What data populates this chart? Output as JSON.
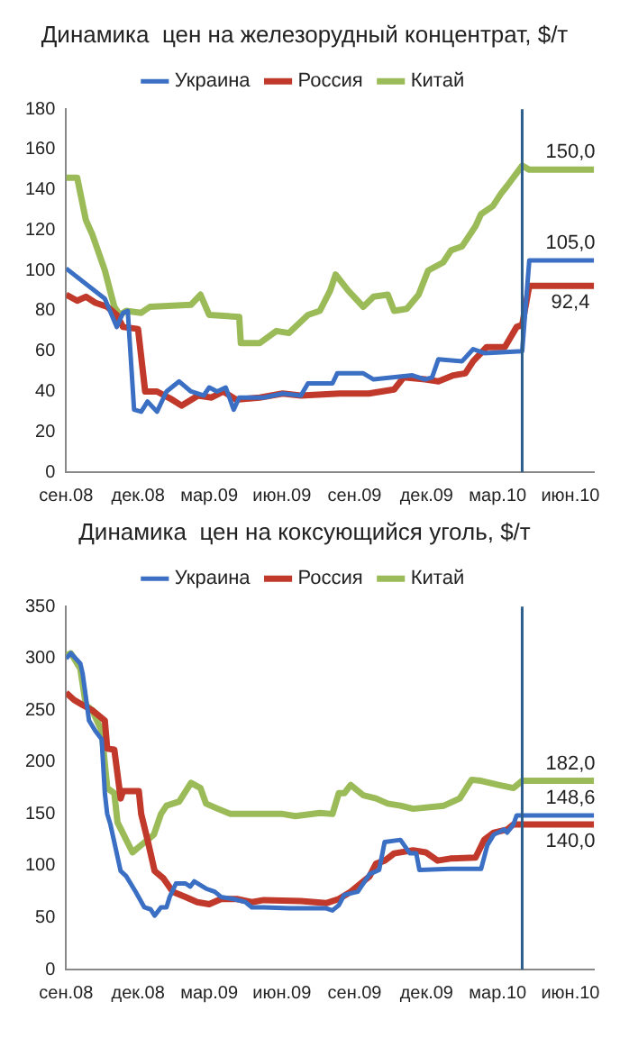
{
  "chart_data": [
    {
      "type": "line",
      "title": "Динамика  цен на железорудный концентрат, $/т",
      "legend": "top",
      "xlim": [
        "2008-09-01",
        "2010-07-01"
      ],
      "xticks": [
        {
          "value": "2008-09-01",
          "label": "сен.08"
        },
        {
          "value": "2008-12-01",
          "label": "дек.08"
        },
        {
          "value": "2009-03-01",
          "label": "мар.09"
        },
        {
          "value": "2009-06-01",
          "label": "июн.09"
        },
        {
          "value": "2009-09-01",
          "label": "сен.09"
        },
        {
          "value": "2009-12-01",
          "label": "дек.09"
        },
        {
          "value": "2010-03-01",
          "label": "мар.10"
        },
        {
          "value": "2010-06-01",
          "label": "июн.10"
        }
      ],
      "ylim": [
        0,
        180
      ],
      "yticks": [
        0,
        20,
        40,
        60,
        80,
        100,
        120,
        140,
        160,
        180
      ],
      "series": [
        {
          "name": "Украина",
          "color": "#3a6fc4",
          "x": [
            "2008-09-01",
            "2008-10-20",
            "2008-11-04",
            "2008-11-12",
            "2008-11-18",
            "2008-11-26",
            "2008-12-05",
            "2008-12-13",
            "2008-12-25",
            "2009-01-06",
            "2009-01-22",
            "2009-02-06",
            "2009-02-22",
            "2009-03-01",
            "2009-03-11",
            "2009-03-22",
            "2009-04-01",
            "2009-04-08",
            "2009-05-09",
            "2009-06-02",
            "2009-06-25",
            "2009-07-04",
            "2009-08-04",
            "2009-08-10",
            "2009-09-12",
            "2009-09-25",
            "2009-11-13",
            "2009-11-29",
            "2009-12-08",
            "2009-12-16",
            "2010-01-15",
            "2010-01-29",
            "2010-02-12",
            "2010-04-01",
            "2010-04-10",
            "2010-07-01"
          ],
          "values": [
            101,
            86,
            72,
            79,
            80,
            31,
            30,
            35,
            30,
            40,
            45,
            40,
            38,
            42,
            40,
            42,
            31,
            37,
            37,
            39,
            38,
            44,
            44,
            49,
            49,
            46,
            48,
            46,
            47,
            56,
            55,
            61,
            59,
            60,
            105,
            105
          ]
        },
        {
          "name": "Россия",
          "color": "#c0392b",
          "x": [
            "2008-09-01",
            "2008-09-15",
            "2008-09-26",
            "2008-10-08",
            "2008-10-23",
            "2008-11-04",
            "2008-11-12",
            "2008-12-01",
            "2008-12-10",
            "2008-12-25",
            "2009-01-13",
            "2009-01-25",
            "2009-02-15",
            "2009-03-04",
            "2009-03-19",
            "2009-04-04",
            "2009-05-04",
            "2009-06-02",
            "2009-06-25",
            "2009-08-13",
            "2009-09-19",
            "2009-10-21",
            "2009-11-02",
            "2009-11-29",
            "2009-12-16",
            "2010-01-04",
            "2010-01-19",
            "2010-01-29",
            "2010-02-15",
            "2010-03-10",
            "2010-03-25",
            "2010-04-01",
            "2010-04-10",
            "2010-07-01"
          ],
          "values": [
            88,
            85,
            87,
            84,
            82,
            78,
            72,
            71,
            40,
            40,
            36,
            33,
            38,
            37,
            40,
            36,
            37,
            39,
            38,
            39,
            39,
            41,
            47,
            46,
            45,
            48,
            49,
            55,
            62,
            62,
            72,
            73,
            92.4,
            92.4
          ]
        },
        {
          "name": "Китай",
          "color": "#9bbb59",
          "x": [
            "2008-09-01",
            "2008-09-15",
            "2008-09-26",
            "2008-10-04",
            "2008-10-20",
            "2008-11-01",
            "2008-11-08",
            "2008-11-16",
            "2008-12-05",
            "2008-12-16",
            "2009-02-06",
            "2009-02-18",
            "2009-03-01",
            "2009-04-08",
            "2009-04-10",
            "2009-05-04",
            "2009-05-25",
            "2009-06-10",
            "2009-07-04",
            "2009-07-19",
            "2009-08-01",
            "2009-08-08",
            "2009-08-24",
            "2009-09-12",
            "2009-09-25",
            "2009-10-13",
            "2009-10-21",
            "2009-11-06",
            "2009-11-21",
            "2009-12-03",
            "2009-12-22",
            "2010-01-01",
            "2010-01-15",
            "2010-02-01",
            "2010-02-08",
            "2010-02-23",
            "2010-03-05",
            "2010-03-13",
            "2010-04-01",
            "2010-04-10",
            "2010-07-01"
          ],
          "values": [
            146,
            146,
            125,
            118,
            100,
            82,
            78,
            80,
            79,
            82,
            83,
            88,
            78,
            77,
            64,
            64,
            70,
            69,
            78,
            80,
            90,
            98,
            90,
            82,
            87,
            88,
            80,
            81,
            88,
            100,
            104,
            110,
            112,
            122,
            128,
            132,
            138,
            142,
            152,
            150,
            150
          ]
        }
      ],
      "ref_lines": [
        {
          "axis": "x",
          "value": "2010-04-01",
          "color": "#2e5e8c"
        }
      ],
      "annotations": [
        {
          "text": "150,0",
          "x": "2010-06-01",
          "y": 150
        },
        {
          "text": "105,0",
          "x": "2010-06-01",
          "y": 105
        },
        {
          "text": "92,4",
          "x": "2010-06-01",
          "y": 92.4
        }
      ]
    },
    {
      "type": "line",
      "title": "Динамика  цен на коксующийся уголь, $/т",
      "legend": "top",
      "xlim": [
        "2008-09-01",
        "2010-07-01"
      ],
      "xticks": [
        {
          "value": "2008-09-01",
          "label": "сен.08"
        },
        {
          "value": "2008-12-01",
          "label": "дек.08"
        },
        {
          "value": "2009-03-01",
          "label": "мар.09"
        },
        {
          "value": "2009-06-01",
          "label": "июн.09"
        },
        {
          "value": "2009-09-01",
          "label": "сен.09"
        },
        {
          "value": "2009-12-01",
          "label": "дек.09"
        },
        {
          "value": "2010-03-01",
          "label": "мар.10"
        },
        {
          "value": "2010-06-01",
          "label": "июн.10"
        }
      ],
      "ylim": [
        0,
        350
      ],
      "yticks": [
        0,
        50,
        100,
        150,
        200,
        250,
        300,
        350
      ],
      "series": [
        {
          "name": "Украина",
          "color": "#3a6fc4",
          "x": [
            "2008-09-01",
            "2008-09-07",
            "2008-09-19",
            "2008-09-22",
            "2008-09-30",
            "2008-10-08",
            "2008-10-16",
            "2008-10-20",
            "2008-10-23",
            "2008-10-27",
            "2008-11-09",
            "2008-11-16",
            "2008-11-28",
            "2008-12-09",
            "2008-12-17",
            "2008-12-22",
            "2008-12-30",
            "2009-01-06",
            "2009-01-10",
            "2009-01-18",
            "2009-01-30",
            "2009-02-05",
            "2009-02-10",
            "2009-02-25",
            "2009-03-08",
            "2009-03-16",
            "2009-04-01",
            "2009-04-16",
            "2009-04-24",
            "2009-05-09",
            "2009-06-10",
            "2009-07-27",
            "2009-08-04",
            "2009-08-12",
            "2009-08-19",
            "2009-09-05",
            "2009-09-20",
            "2009-10-02",
            "2009-10-09",
            "2009-10-29",
            "2009-11-10",
            "2009-11-18",
            "2009-11-22",
            "2009-12-31",
            "2010-02-08",
            "2010-02-16",
            "2010-02-24",
            "2010-03-09",
            "2010-03-13",
            "2010-03-21",
            "2010-03-25",
            "2010-07-01"
          ],
          "values": [
            300,
            305,
            295,
            285,
            240,
            230,
            222,
            170,
            150,
            140,
            95,
            90,
            75,
            60,
            58,
            52,
            60,
            60,
            70,
            83,
            83,
            80,
            85,
            78,
            75,
            70,
            68,
            65,
            60,
            60,
            59,
            59,
            57,
            62,
            72,
            75,
            92,
            96,
            123,
            125,
            112,
            112,
            96,
            97,
            97,
            120,
            130,
            135,
            132,
            140,
            148.6,
            148.6
          ]
        },
        {
          "name": "Россия",
          "color": "#c0392b",
          "x": [
            "2008-09-01",
            "2008-09-11",
            "2008-09-22",
            "2008-10-04",
            "2008-10-12",
            "2008-10-20",
            "2008-10-23",
            "2008-11-01",
            "2008-11-09",
            "2008-11-12",
            "2008-12-02",
            "2008-12-05",
            "2008-12-13",
            "2008-12-22",
            "2009-01-02",
            "2009-01-14",
            "2009-01-30",
            "2009-02-14",
            "2009-03-01",
            "2009-03-16",
            "2009-04-05",
            "2009-04-24",
            "2009-05-09",
            "2009-06-25",
            "2009-07-27",
            "2009-08-12",
            "2009-08-27",
            "2009-09-20",
            "2009-09-28",
            "2009-10-09",
            "2009-10-21",
            "2009-11-14",
            "2009-11-30",
            "2009-12-15",
            "2009-12-31",
            "2010-02-01",
            "2010-02-12",
            "2010-02-24",
            "2010-03-13",
            "2010-03-21",
            "2010-07-01"
          ],
          "values": [
            267,
            260,
            255,
            250,
            245,
            240,
            213,
            212,
            165,
            172,
            172,
            150,
            125,
            95,
            88,
            75,
            70,
            65,
            63,
            68,
            68,
            65,
            67,
            66,
            64,
            68,
            75,
            90,
            102,
            105,
            112,
            115,
            113,
            105,
            107,
            108,
            125,
            132,
            135,
            140,
            140
          ]
        },
        {
          "name": "Китай",
          "color": "#9bbb59",
          "x": [
            "2008-09-01",
            "2008-09-07",
            "2008-09-19",
            "2008-09-26",
            "2008-10-04",
            "2008-10-16",
            "2008-10-23",
            "2008-11-01",
            "2008-11-05",
            "2008-11-24",
            "2008-12-05",
            "2008-12-21",
            "2008-12-30",
            "2009-01-06",
            "2009-01-22",
            "2009-02-06",
            "2009-02-18",
            "2009-02-25",
            "2009-03-12",
            "2009-03-28",
            "2009-06-02",
            "2009-06-18",
            "2009-07-19",
            "2009-08-04",
            "2009-08-12",
            "2009-08-19",
            "2009-08-27",
            "2009-09-12",
            "2009-09-28",
            "2009-10-13",
            "2009-10-29",
            "2009-11-14",
            "2009-12-23",
            "2010-01-12",
            "2010-01-27",
            "2010-02-08",
            "2010-03-02",
            "2010-03-21",
            "2010-04-01",
            "2010-07-01"
          ],
          "values": [
            303,
            305,
            290,
            255,
            250,
            230,
            175,
            170,
            142,
            113,
            120,
            130,
            150,
            158,
            162,
            180,
            175,
            160,
            155,
            150,
            150,
            148,
            151,
            150,
            170,
            170,
            178,
            168,
            165,
            160,
            158,
            155,
            158,
            165,
            183,
            182,
            178,
            175,
            182,
            182
          ]
        }
      ],
      "ref_lines": [
        {
          "axis": "x",
          "value": "2010-04-01",
          "color": "#2e5e8c"
        }
      ],
      "annotations": [
        {
          "text": "182,0",
          "x": "2010-06-01",
          "y": 182
        },
        {
          "text": "148,6",
          "x": "2010-06-01",
          "y": 148.6
        },
        {
          "text": "140,0",
          "x": "2010-06-01",
          "y": 140
        }
      ]
    }
  ]
}
